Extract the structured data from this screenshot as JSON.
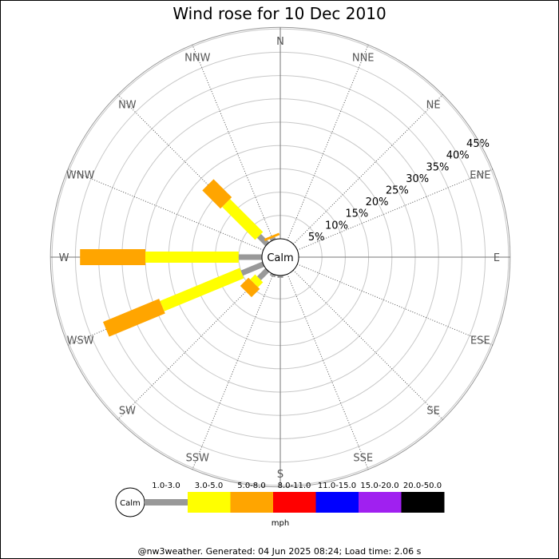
{
  "title": "Wind rose for 10 Dec 2010",
  "footer": "@nw3weather. Generated: 04 Jun 2025 08:24; Load time: 2.06 s",
  "chart_data": {
    "type": "wind-rose",
    "title": "Wind rose for 10 Dec 2010",
    "directions": [
      "N",
      "NNE",
      "NE",
      "ENE",
      "E",
      "ESE",
      "SE",
      "SSE",
      "S",
      "SSW",
      "SW",
      "WSW",
      "W",
      "WNW",
      "NW",
      "NNW"
    ],
    "radial_ticks": [
      "5%",
      "10%",
      "15%",
      "20%",
      "25%",
      "30%",
      "35%",
      "40%",
      "45%"
    ],
    "radial_max": 45,
    "center_label": "Calm",
    "speed_bins": [
      "1.0-3.0",
      "3.0-5.0",
      "5.0-8.0",
      "8.0-11.0",
      "11.0-15.0",
      "15.0-20.0",
      "20.0-50.0"
    ],
    "speed_colors": [
      "#999999",
      "#ffff00",
      "#ffa500",
      "#ff0000",
      "#0000ff",
      "#a020f0",
      "#000000"
    ],
    "unit": "mph",
    "series": [
      {
        "direction": "N",
        "cumulative": [
          0,
          0,
          0
        ]
      },
      {
        "direction": "NNE",
        "cumulative": [
          0,
          0,
          0
        ]
      },
      {
        "direction": "NE",
        "cumulative": [
          0,
          0,
          0
        ]
      },
      {
        "direction": "ENE",
        "cumulative": [
          0,
          0,
          0
        ]
      },
      {
        "direction": "E",
        "cumulative": [
          0,
          0,
          0
        ]
      },
      {
        "direction": "ESE",
        "cumulative": [
          0,
          0,
          0
        ]
      },
      {
        "direction": "SE",
        "cumulative": [
          0,
          0,
          0
        ]
      },
      {
        "direction": "SSE",
        "cumulative": [
          0,
          0,
          0
        ]
      },
      {
        "direction": "S",
        "cumulative": [
          0.5,
          0.5,
          0.5
        ]
      },
      {
        "direction": "SSW",
        "cumulative": [
          0.5,
          0.5,
          0.5
        ]
      },
      {
        "direction": "SW",
        "cumulative": [
          2.5,
          4.0,
          6.5
        ]
      },
      {
        "direction": "WSW",
        "cumulative": [
          5.0,
          23.5,
          36.5
        ]
      },
      {
        "direction": "W",
        "cumulative": [
          5.0,
          25.0,
          39.0
        ]
      },
      {
        "direction": "WNW",
        "cumulative": [
          0,
          0,
          0
        ]
      },
      {
        "direction": "NW",
        "cumulative": [
          2.5,
          12.5,
          18.0
        ]
      },
      {
        "direction": "NNW",
        "cumulative": [
          0.5,
          0.5,
          1.0
        ]
      }
    ]
  }
}
